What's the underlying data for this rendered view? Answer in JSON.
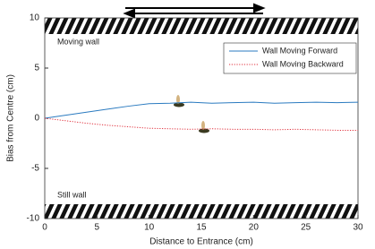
{
  "chart_data": {
    "type": "line",
    "xlabel": "Distance to Entrance (cm)",
    "ylabel": "Bias from Centre (cm)",
    "annotations": [
      "Moving wall",
      "Still wall"
    ],
    "x": [
      0,
      2,
      4,
      6,
      8,
      10,
      12,
      14,
      16,
      18,
      20,
      22,
      24,
      26,
      28,
      30
    ],
    "series": [
      {
        "name": "Wall Moving Forward",
        "color": "#2b7bc0",
        "style": "solid",
        "values": [
          0,
          0.3,
          0.6,
          0.9,
          1.2,
          1.45,
          1.5,
          1.6,
          1.5,
          1.55,
          1.6,
          1.5,
          1.55,
          1.6,
          1.55,
          1.6
        ]
      },
      {
        "name": "Wall Moving Backward",
        "color": "#e0303c",
        "style": "dotted",
        "values": [
          0,
          -0.25,
          -0.5,
          -0.7,
          -0.85,
          -1.0,
          -1.05,
          -1.1,
          -1.05,
          -1.1,
          -1.1,
          -1.15,
          -1.1,
          -1.15,
          -1.2,
          -1.2
        ]
      }
    ],
    "xlim": [
      0,
      30
    ],
    "xticks": [
      0,
      5,
      10,
      15,
      20,
      25,
      30
    ],
    "ylim": [
      -10,
      10
    ],
    "yticks": [
      -10,
      -5,
      0,
      5,
      10
    ],
    "legend": "upper right"
  }
}
